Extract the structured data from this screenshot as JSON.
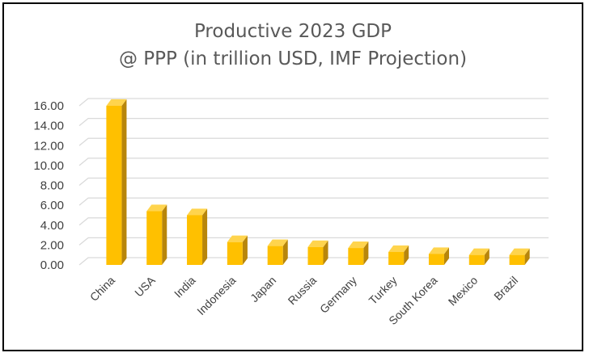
{
  "chart_data": {
    "type": "bar",
    "title": [
      "Productive 2023 GDP",
      "@ PPP (in trillion USD, IMF Projection)"
    ],
    "xlabel": "",
    "ylabel": "",
    "categories": [
      "China",
      "USA",
      "India",
      "Indonesia",
      "Japan",
      "Russia",
      "Germany",
      "Turkey",
      "South Korea",
      "Mexico",
      "Brazil"
    ],
    "values": [
      16.0,
      5.4,
      5.0,
      2.3,
      1.9,
      1.8,
      1.7,
      1.3,
      1.1,
      1.0,
      1.0
    ],
    "ylim": [
      0,
      16
    ],
    "yticks": [
      "0.00",
      "2.00",
      "4.00",
      "6.00",
      "8.00",
      "10.00",
      "12.00",
      "14.00",
      "16.00"
    ],
    "grid": true,
    "legend": "none",
    "colors": {
      "bar_front": "#FFC000",
      "bar_top": "#FFD44D",
      "bar_side": "#B8860B",
      "grid": "#D9D9D9",
      "text": "#595959"
    }
  }
}
